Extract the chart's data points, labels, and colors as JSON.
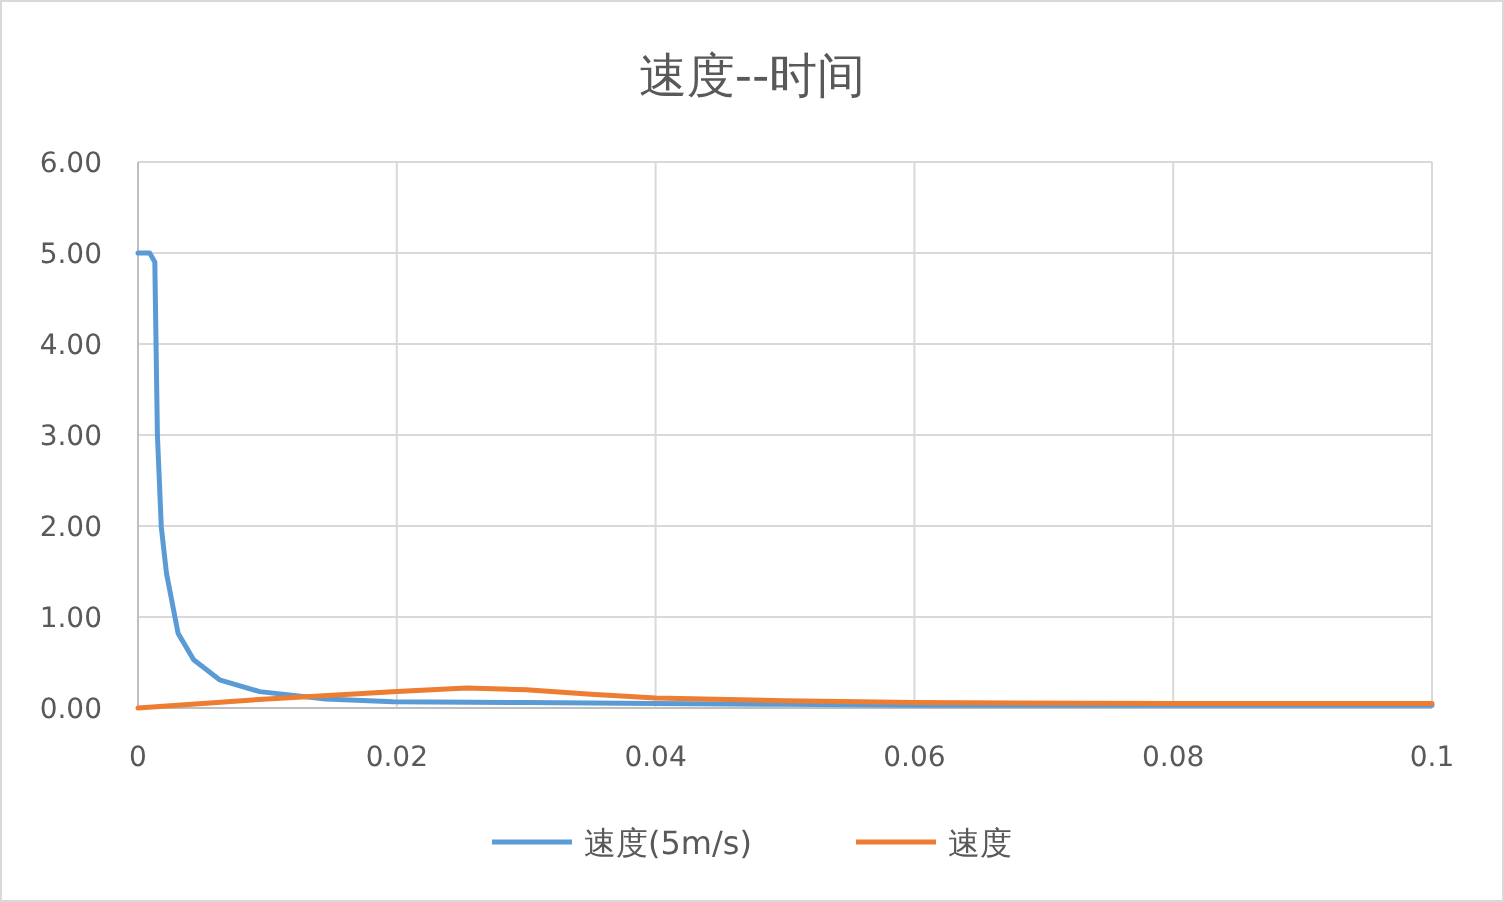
{
  "chart_data": {
    "type": "line",
    "title": "速度--时间",
    "series": [
      {
        "name": "速度(5m/s)",
        "color": "#5b9bd5",
        "x": [
          0,
          0.0009,
          0.0013,
          0.0015,
          0.0018,
          0.0022,
          0.0031,
          0.0043,
          0.0063,
          0.0094,
          0.0145,
          0.0197,
          0.03,
          0.04,
          0.05,
          0.06,
          0.08,
          0.1
        ],
        "values": [
          5.0,
          5.0,
          4.9,
          3.0,
          1.99,
          1.48,
          0.82,
          0.53,
          0.31,
          0.18,
          0.1,
          0.07,
          0.06,
          0.05,
          0.04,
          0.03,
          0.03,
          0.03
        ]
      },
      {
        "name": "速度",
        "color": "#ed7d31",
        "x": [
          0,
          0.005,
          0.01,
          0.015,
          0.02,
          0.0254,
          0.03,
          0.035,
          0.04,
          0.05,
          0.06,
          0.08,
          0.1
        ],
        "values": [
          0,
          0.05,
          0.1,
          0.14,
          0.18,
          0.22,
          0.2,
          0.15,
          0.11,
          0.08,
          0.06,
          0.05,
          0.05
        ]
      }
    ],
    "xlim": [
      0,
      0.1
    ],
    "xticks": [
      {
        "value": 0,
        "label": "0"
      },
      0.02,
      0.04,
      0.06,
      0.08,
      0.1
    ],
    "ylim": [
      0,
      6
    ],
    "yticks": [
      {
        "value": 0,
        "label": "0.00"
      },
      {
        "value": 1,
        "label": "1.00"
      },
      {
        "value": 2,
        "label": "2.00"
      },
      {
        "value": 3,
        "label": "3.00"
      },
      {
        "value": 4,
        "label": "4.00"
      },
      {
        "value": 5,
        "label": "5.00"
      },
      {
        "value": 6,
        "label": "6.00"
      }
    ],
    "grid": true,
    "legend": "bottom",
    "marker": "none",
    "line_style": "solid"
  }
}
